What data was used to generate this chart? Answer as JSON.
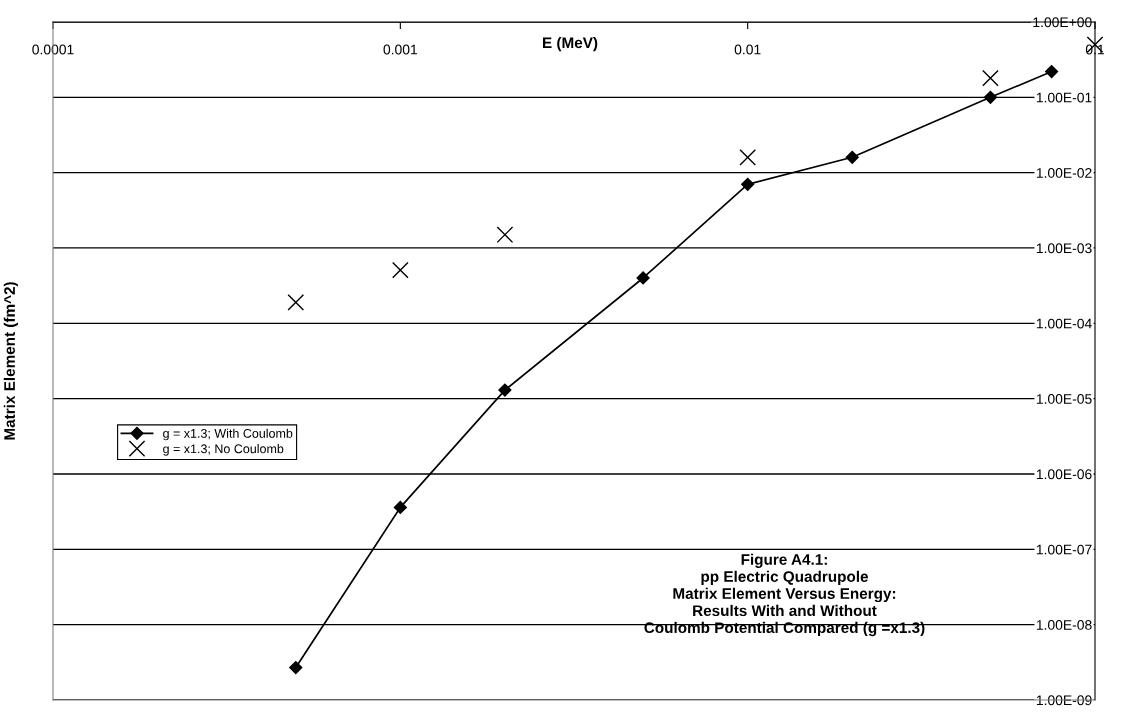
{
  "chart_data": {
    "type": "line",
    "title": "Figure A4.1:\npp Electric Quadrupole\nMatrix Element Versus Energy:\nResults With and Without\nCoulomb Potential Compared (g =x1.3)",
    "xlabel": "E (MeV)",
    "ylabel": "Matrix Element (fm^2)",
    "log": "xy",
    "xlim": [
      0.0001,
      0.1
    ],
    "xticks": [
      0.0001,
      0.001,
      0.01,
      0.1
    ],
    "ylim": [
      1e-09,
      1
    ],
    "yticks": [
      {
        "value": 1e-09,
        "label": "1.00E-09"
      },
      {
        "value": 1e-08,
        "label": "1.00E-08"
      },
      {
        "value": 1e-07,
        "label": "1.00E-07"
      },
      {
        "value": 1e-06,
        "label": "1.00E-06"
      },
      {
        "value": 1e-05,
        "label": "1.00E-05"
      },
      {
        "value": 0.0001,
        "label": "1.00E-04"
      },
      {
        "value": 0.001,
        "label": "1.00E-03"
      },
      {
        "value": 0.01,
        "label": "1.00E-02"
      },
      {
        "value": 0.1,
        "label": "1.00E-01"
      },
      {
        "value": 1,
        "label": "1.00E+00"
      }
    ],
    "grid": "y",
    "legend": "left",
    "series": [
      {
        "name": "g = x1.3; With Coulomb",
        "color": "#000000",
        "marker": "diamond",
        "line_style": "solid",
        "x": [
          0.0005,
          0.001,
          0.002,
          0.005,
          0.01,
          0.02,
          0.05,
          0.075
        ],
        "values": [
          2.7e-09,
          3.6e-07,
          1.3e-05,
          0.0004,
          0.007,
          0.016,
          0.1,
          0.22
        ]
      },
      {
        "name": "g = x1.3; No Coulomb",
        "type": "scatter",
        "color": "#000000",
        "marker": "cross",
        "x": [
          0.0005,
          0.001,
          0.002,
          0.01,
          0.05,
          0.1
        ],
        "values": [
          0.00019,
          0.00051,
          0.0015,
          0.016,
          0.18,
          0.5
        ]
      }
    ]
  }
}
